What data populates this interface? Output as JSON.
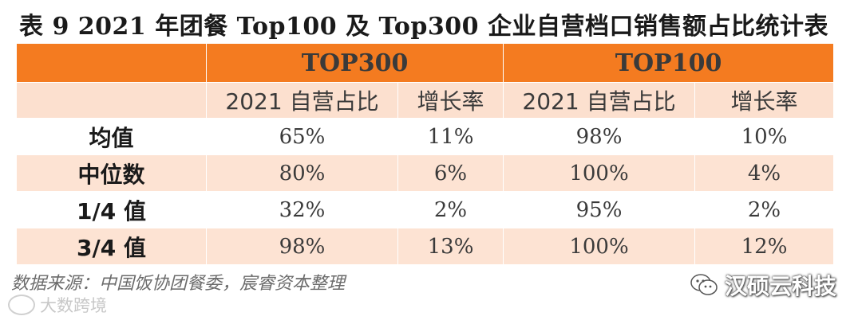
{
  "title": "表 9  2021 年团餐 Top100 及 Top300 企业自营档口销售额占比统计表",
  "table": {
    "group_headers": [
      "TOP300",
      "TOP100"
    ],
    "sub_headers": [
      "2021 自营占比",
      "增长率",
      "2021 自营占比",
      "增长率"
    ],
    "rows": [
      {
        "label": "均值",
        "cells": [
          "65%",
          "11%",
          "98%",
          "10%"
        ]
      },
      {
        "label": "中位数",
        "cells": [
          "80%",
          "6%",
          "100%",
          "4%"
        ]
      },
      {
        "label": "1/4 值",
        "cells": [
          "32%",
          "2%",
          "95%",
          "2%"
        ]
      },
      {
        "label": "3/4 值",
        "cells": [
          "98%",
          "13%",
          "100%",
          "12%"
        ]
      }
    ]
  },
  "source": "数据来源：中国饭协团餐委，宸睿资本整理",
  "watermark_left": "大数跨境",
  "watermark_right": "汉硕云科技",
  "colors": {
    "header_orange": "#f47b20",
    "row_peach": "#fde3d3"
  }
}
